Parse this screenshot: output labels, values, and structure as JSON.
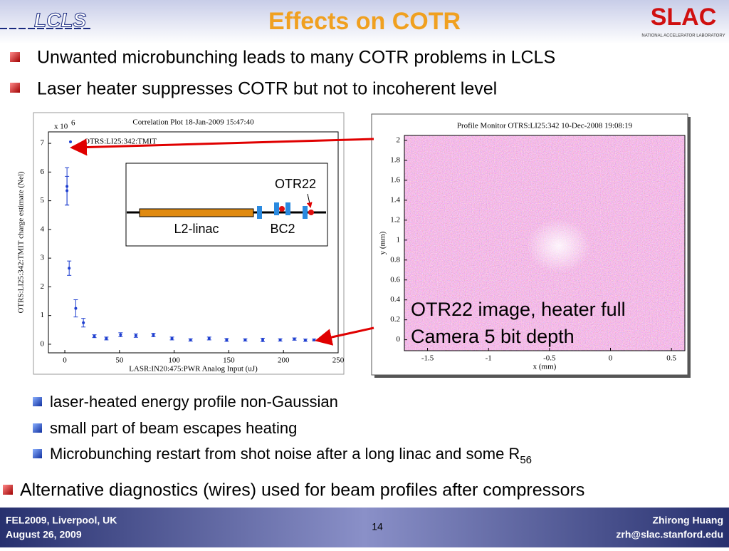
{
  "header": {
    "title": "Effects on COTR",
    "logo_left": "LCLS",
    "logo_right": "SLAC",
    "logo_right_sub": "NATIONAL ACCELERATOR LABORATORY"
  },
  "bullets_top": [
    "Unwanted microbunching leads to many COTR problems in LCLS",
    "Laser heater suppresses COTR but not to incoherent level"
  ],
  "sub_bullets": [
    "laser-heated energy profile non-Gaussian",
    "small part of beam escapes heating"
  ],
  "last_sub_bullet": {
    "text": "Microbunching restart from shot noise after a long linac and some R",
    "subscript": "56"
  },
  "bullet_bottom": "Alternative diagnostics (wires) used for beam profiles after compressors",
  "inset": {
    "marker": "OTR22",
    "linac": "L2-linac",
    "chicane": "BC2"
  },
  "image_annotation": [
    "OTR22 image, heater full",
    "Camera 5 bit depth"
  ],
  "footer": {
    "left": [
      "FEL2009, Liverpool, UK",
      "August 26, 2009"
    ],
    "page": "14",
    "right": [
      "Zhirong Huang",
      "zrh@slac.stanford.edu"
    ]
  },
  "chart_data": [
    {
      "type": "scatter",
      "title": "Correlation Plot 18-Jan-2009 15:47:40",
      "x_label": "LASR:IN20:475:PWR Analog Input (uJ)",
      "y_label": "OTRS:LI25:342:TMIT charge estimate (Nel)",
      "y_multiplier": {
        "base": "x 10",
        "exponent": "6"
      },
      "series": [
        {
          "name": "OTRS:LI25:342:TMIT",
          "color": "#1f3fd0",
          "x": [
            2,
            2,
            4,
            10,
            17,
            27,
            38,
            51,
            65,
            81,
            98,
            115,
            132,
            148,
            165,
            181,
            197,
            210,
            220,
            228,
            235
          ],
          "values": [
            5.5,
            5.35,
            2.65,
            1.25,
            0.75,
            0.28,
            0.2,
            0.33,
            0.3,
            0.32,
            0.2,
            0.15,
            0.2,
            0.15,
            0.15,
            0.15,
            0.15,
            0.18,
            0.14,
            0.15,
            0.15
          ],
          "errors": [
            0.65,
            0.5,
            0.25,
            0.3,
            0.15,
            0.05,
            0.05,
            0.07,
            0.06,
            0.06,
            0.05,
            0.04,
            0.05,
            0.05,
            0.04,
            0.06,
            0.04,
            0.04,
            0.04,
            0.03,
            0.03
          ]
        }
      ],
      "xlim": [
        -15,
        250
      ],
      "ylim": [
        -0.3,
        7.4
      ],
      "xticks": [
        0,
        50,
        100,
        150,
        200,
        250
      ],
      "yticks": [
        0,
        1,
        2,
        3,
        4,
        5,
        6,
        7
      ]
    },
    {
      "type": "image",
      "title": "Profile Monitor OTRS:LI25:342 10-Dec-2008 19:08:19",
      "x_label": "x  (mm)",
      "y_label": "y  (mm)",
      "xlim": [
        -1.69,
        0.61
      ],
      "ylim": [
        -0.11,
        2.05
      ],
      "xticks": [
        -1.5,
        -1,
        -0.5,
        0,
        0.5
      ],
      "yticks": [
        0,
        0.2,
        0.4,
        0.6,
        0.8,
        1,
        1.2,
        1.4,
        1.6,
        1.8,
        2
      ]
    }
  ]
}
